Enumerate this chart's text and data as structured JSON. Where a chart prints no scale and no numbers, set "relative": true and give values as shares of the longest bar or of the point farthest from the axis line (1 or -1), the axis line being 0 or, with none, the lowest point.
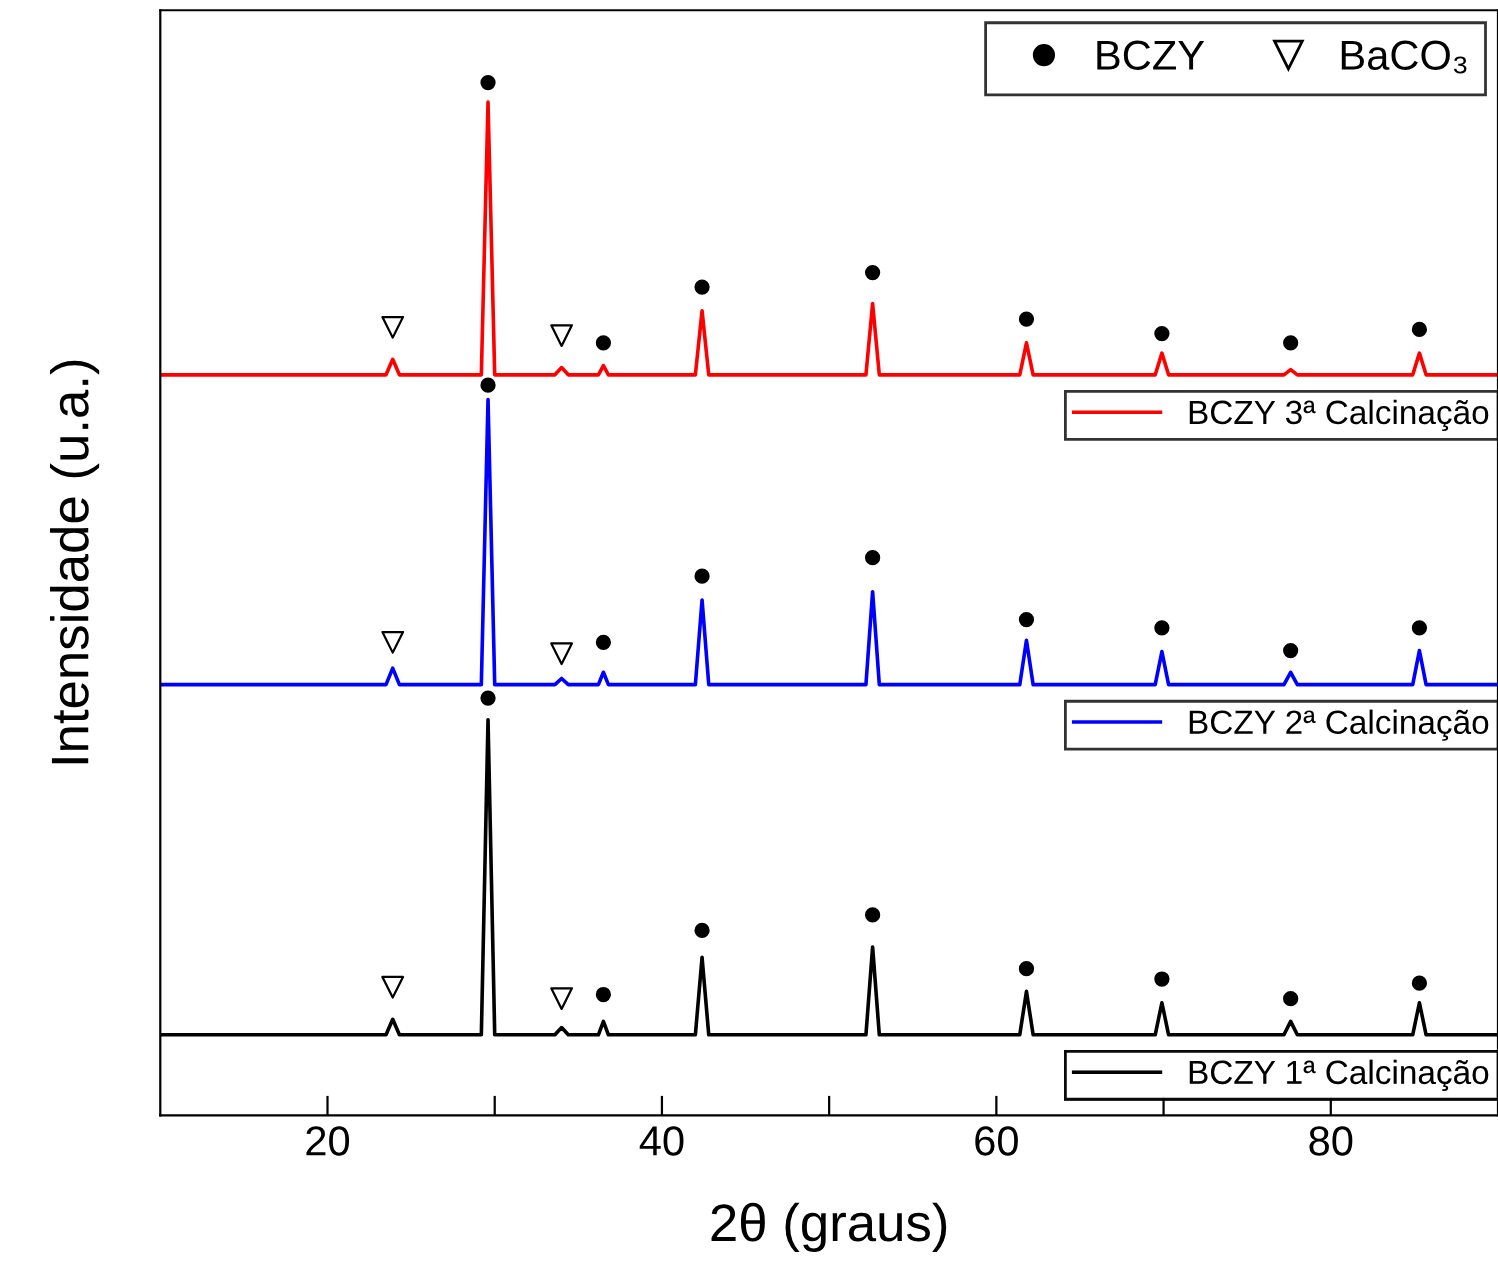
{
  "chart_data": {
    "type": "line",
    "relative": true,
    "xlabel": "2θ (graus)",
    "ylabel": "Intensidade (u.a.)",
    "xlim": [
      10,
      90
    ],
    "xticks": [
      20,
      {
        "value": 30,
        "label": null
      },
      40,
      {
        "value": 50,
        "label": null
      },
      60,
      {
        "value": 70,
        "label": null
      },
      80
    ],
    "tick_labels": "x",
    "grid": false,
    "legend": "top right",
    "x": [
      10,
      23.5,
      23.9,
      24.3,
      29.2,
      29.6,
      30.0,
      33.6,
      34.0,
      34.4,
      36.2,
      36.5,
      36.8,
      42.0,
      42.4,
      42.8,
      52.2,
      52.6,
      53.0,
      61.4,
      61.8,
      62.2,
      69.5,
      69.9,
      70.3,
      77.2,
      77.6,
      78.0,
      84.9,
      85.3,
      85.7,
      90
    ],
    "series": [
      {
        "name": "BCZY 3ª Calcinação",
        "color": "#ff0000",
        "values": [
          0.717,
          0.717,
          0.732,
          0.717,
          0.717,
          0.981,
          0.717,
          0.717,
          0.724,
          0.717,
          0.717,
          0.726,
          0.717,
          0.717,
          0.779,
          0.717,
          0.717,
          0.786,
          0.717,
          0.717,
          0.748,
          0.717,
          0.717,
          0.738,
          0.717,
          0.717,
          0.722,
          0.717,
          0.717,
          0.738,
          0.717,
          0.717
        ]
      },
      {
        "name": "BCZY 2ª Calcinação",
        "color": "#0000ff",
        "values": [
          0.417,
          0.417,
          0.433,
          0.417,
          0.417,
          0.693,
          0.417,
          0.417,
          0.423,
          0.417,
          0.417,
          0.429,
          0.417,
          0.417,
          0.499,
          0.417,
          0.417,
          0.507,
          0.417,
          0.417,
          0.46,
          0.417,
          0.417,
          0.449,
          0.417,
          0.417,
          0.429,
          0.417,
          0.417,
          0.45,
          0.417,
          0.417
        ]
      },
      {
        "name": "BCZY 1ª Calcinação",
        "color": "#000000",
        "values": [
          0.078,
          0.078,
          0.093,
          0.078,
          0.078,
          0.383,
          0.078,
          0.078,
          0.085,
          0.078,
          0.078,
          0.091,
          0.078,
          0.078,
          0.153,
          0.078,
          0.078,
          0.163,
          0.078,
          0.078,
          0.12,
          0.078,
          0.078,
          0.109,
          0.078,
          0.078,
          0.091,
          0.078,
          0.078,
          0.109,
          0.078,
          0.078
        ]
      },
      {
        "name": "BCZY",
        "type": "scatter",
        "marker": "circle",
        "color": "#000000",
        "x": [
          29.6,
          36.5,
          42.4,
          52.6,
          61.8,
          69.9,
          77.6,
          85.3,
          29.6,
          36.5,
          42.4,
          52.6,
          61.8,
          69.9,
          77.6,
          85.3,
          29.6,
          36.5,
          42.4,
          52.6,
          61.8,
          69.9,
          77.6,
          85.3
        ],
        "values": [
          1.0,
          0.748,
          0.802,
          0.816,
          0.771,
          0.757,
          0.748,
          0.761,
          0.707,
          0.458,
          0.522,
          0.54,
          0.48,
          0.472,
          0.45,
          0.472,
          0.404,
          0.117,
          0.179,
          0.194,
          0.142,
          0.132,
          0.113,
          0.128
        ]
      },
      {
        "name": "BaCO₃",
        "type": "scatter",
        "marker": "triangle",
        "color": "#000000",
        "x": [
          23.9,
          34.0,
          23.9,
          34.0,
          23.9,
          34.0
        ],
        "values": [
          0.763,
          0.755,
          0.458,
          0.447,
          0.124,
          0.113
        ]
      }
    ]
  }
}
